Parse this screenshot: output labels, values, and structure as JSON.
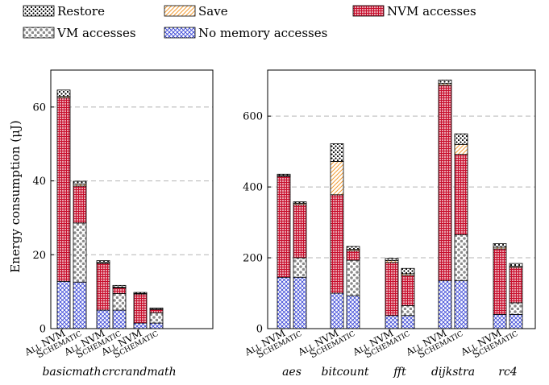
{
  "colors": {
    "restore": "#000000",
    "save": "#f39c33",
    "nvm": "#c8102e",
    "vm": "#8a8a8a",
    "none": "#3340d6",
    "grid": "#b5b5b5"
  },
  "chart_data": {
    "type": "bar",
    "stacked": true,
    "grid": "horizontal dashed",
    "legend_placement": "top",
    "ylabel": "Energy consumption (μJ)",
    "configurations": [
      "All NVM",
      "Schematic"
    ],
    "segment_order_bottom_to_top": [
      "No memory accesses",
      "VM accesses",
      "NVM accesses",
      "Save",
      "Restore"
    ],
    "legend": [
      {
        "key": "restore",
        "label": "Restore"
      },
      {
        "key": "save",
        "label": "Save"
      },
      {
        "key": "nvm",
        "label": "NVM accesses"
      },
      {
        "key": "vm",
        "label": "VM accesses"
      },
      {
        "key": "none",
        "label": "No memory accesses"
      }
    ],
    "panels": [
      {
        "ylim": [
          0,
          70
        ],
        "yticks": [
          0,
          20,
          40,
          60
        ],
        "benchmarks": [
          {
            "name": "basicmath",
            "bars": [
              {
                "config": "All NVM",
                "none": 12.8,
                "vm": 0,
                "nvm": 49.7,
                "save": 0.4,
                "restore": 1.7
              },
              {
                "config": "Schematic",
                "none": 12.6,
                "vm": 16.0,
                "nvm": 10.0,
                "save": 0.5,
                "restore": 0.8
              }
            ]
          },
          {
            "name": "crc",
            "bars": [
              {
                "config": "All NVM",
                "none": 5.0,
                "vm": 0,
                "nvm": 12.7,
                "save": 0.2,
                "restore": 0.5
              },
              {
                "config": "Schematic",
                "none": 5.0,
                "vm": 4.5,
                "nvm": 1.5,
                "save": 0.2,
                "restore": 0.5
              }
            ]
          },
          {
            "name": "randmath",
            "bars": [
              {
                "config": "All NVM",
                "none": 1.5,
                "vm": 0,
                "nvm": 7.9,
                "save": 0.1,
                "restore": 0.3
              },
              {
                "config": "Schematic",
                "none": 1.5,
                "vm": 2.8,
                "nvm": 0.9,
                "save": 0.1,
                "restore": 0.3
              }
            ]
          }
        ]
      },
      {
        "ylim": [
          0,
          730
        ],
        "yticks": [
          0,
          200,
          400,
          600
        ],
        "benchmarks": [
          {
            "name": "aes",
            "bars": [
              {
                "config": "All NVM",
                "none": 145,
                "vm": 0,
                "nvm": 285,
                "save": 2,
                "restore": 4
              },
              {
                "config": "Schematic",
                "none": 145,
                "vm": 55,
                "nvm": 150,
                "save": 4,
                "restore": 4
              }
            ]
          },
          {
            "name": "bitcount",
            "bars": [
              {
                "config": "All NVM",
                "none": 100,
                "vm": 0,
                "nvm": 278,
                "save": 94,
                "restore": 50
              },
              {
                "config": "Schematic",
                "none": 93,
                "vm": 100,
                "nvm": 27,
                "save": 4,
                "restore": 8
              }
            ]
          },
          {
            "name": "fft",
            "bars": [
              {
                "config": "All NVM",
                "none": 37,
                "vm": 0,
                "nvm": 150,
                "save": 5,
                "restore": 6
              },
              {
                "config": "Schematic",
                "none": 37,
                "vm": 28,
                "nvm": 85,
                "save": 5,
                "restore": 15
              }
            ]
          },
          {
            "name": "dijkstra",
            "bars": [
              {
                "config": "All NVM",
                "none": 135,
                "vm": 0,
                "nvm": 552,
                "save": 5,
                "restore": 10
              },
              {
                "config": "Schematic",
                "none": 135,
                "vm": 130,
                "nvm": 227,
                "save": 28,
                "restore": 30
              }
            ]
          },
          {
            "name": "rc4",
            "bars": [
              {
                "config": "All NVM",
                "none": 40,
                "vm": 0,
                "nvm": 185,
                "save": 5,
                "restore": 10
              },
              {
                "config": "Schematic",
                "none": 40,
                "vm": 33,
                "nvm": 100,
                "save": 3,
                "restore": 8
              }
            ]
          }
        ]
      }
    ]
  }
}
